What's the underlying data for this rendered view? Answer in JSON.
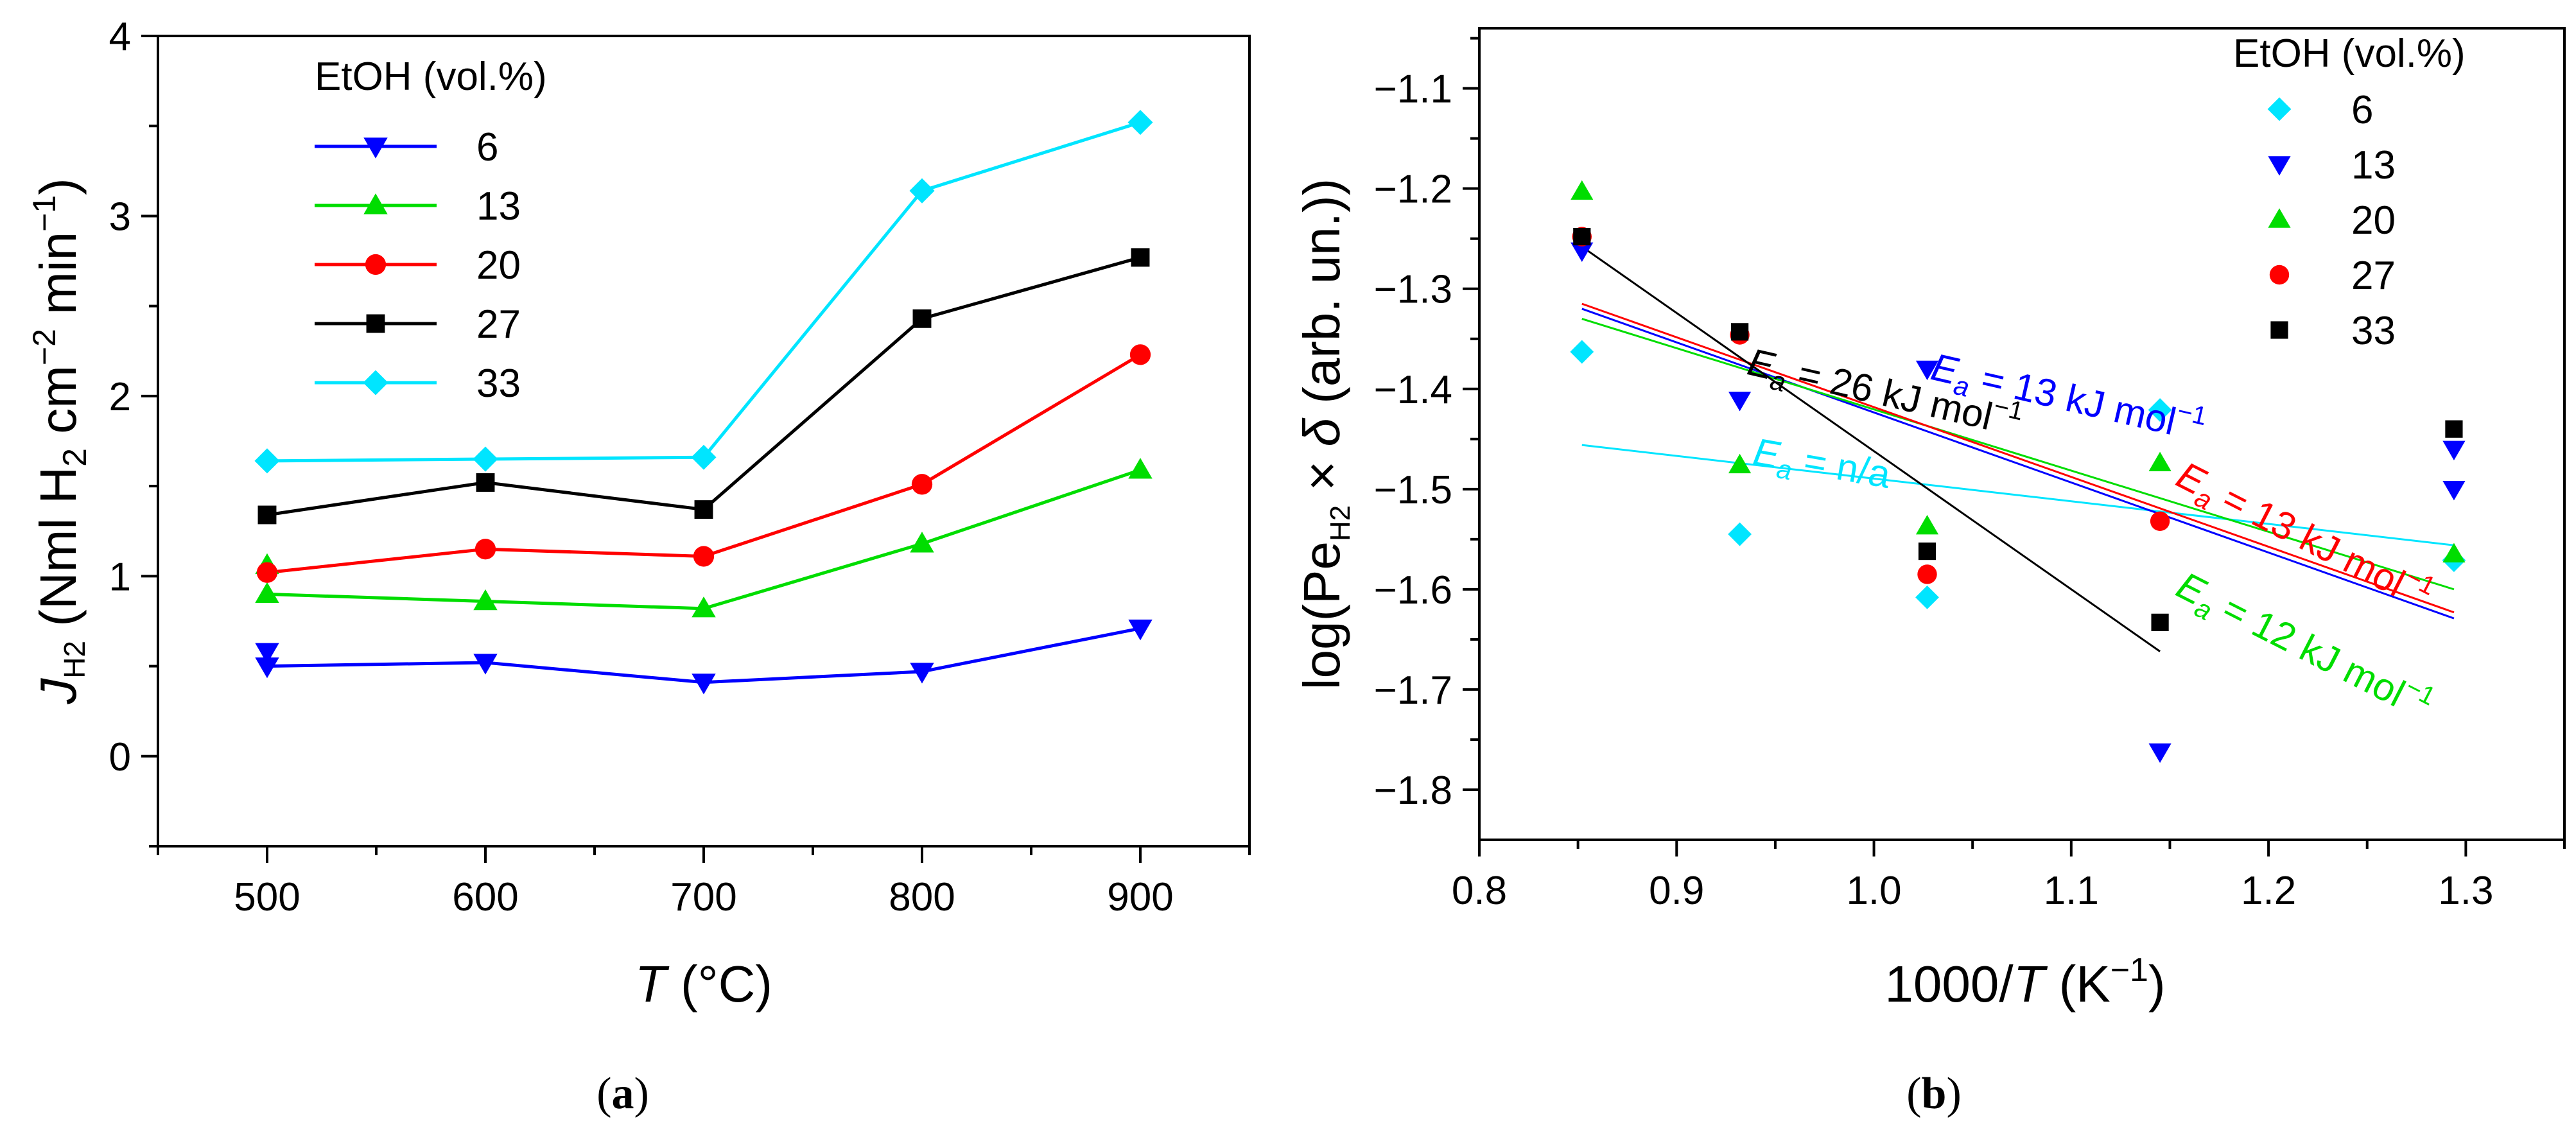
{
  "chart_data": [
    {
      "type": "line",
      "panel_label": "(a)",
      "panel_letter": "a",
      "xlabel": "T (°C)",
      "xlabel_var": "T",
      "xlabel_unit": " (°C)",
      "ylabel": "J_H2 (Nml H2 cm−2 min−1)",
      "ylabel_var": "J",
      "ylabel_sub": "H2",
      "ylabel_parts": {
        "p1": " (Nml H",
        "sub2": "2",
        "p2": " cm",
        "sup1": "−2",
        "p3": " min",
        "sup2": "−1",
        "p4": ")"
      },
      "xlim": [
        450,
        950
      ],
      "ylim": [
        -0.5,
        4
      ],
      "xticks": [
        500,
        600,
        700,
        800,
        900
      ],
      "yticks": [
        0,
        1,
        2,
        3,
        4
      ],
      "legend_title": "EtOH (vol.%)",
      "categories": [
        500,
        600,
        700,
        800,
        900
      ],
      "series": [
        {
          "name": "6",
          "color": "#0000ff",
          "marker": "triangle-down",
          "values": [
            0.5,
            0.52,
            0.41,
            0.47,
            0.71
          ],
          "extra_points": [
            [
              500,
              0.58
            ]
          ]
        },
        {
          "name": "13",
          "color": "#00dd00",
          "marker": "triangle-up",
          "values": [
            0.9,
            0.86,
            0.82,
            1.18,
            1.59
          ],
          "extra_points": [
            [
              500,
              1.06
            ]
          ]
        },
        {
          "name": "20",
          "color": "#ff0000",
          "marker": "circle",
          "values": [
            1.02,
            1.15,
            1.11,
            1.51,
            2.23
          ]
        },
        {
          "name": "27",
          "color": "#000000",
          "marker": "square",
          "values": [
            1.34,
            1.52,
            1.37,
            2.43,
            2.77
          ]
        },
        {
          "name": "33",
          "color": "#00e5ff",
          "marker": "diamond",
          "values": [
            1.64,
            1.65,
            1.66,
            3.14,
            3.52
          ]
        }
      ]
    },
    {
      "type": "scatter",
      "panel_label": "(b)",
      "panel_letter": "b",
      "xlabel": "1000/T (K−1)",
      "xlabel_parts": {
        "p1": "1000/",
        "var": "T",
        "p2": " (K",
        "sup": "−1",
        "p3": ")"
      },
      "ylabel": "log(Pe_H2 × δ (arb. un.))",
      "ylabel_parts": {
        "p1": "log(Pe",
        "sub": "H2",
        "p2": " × ",
        "delta": "δ",
        "p3": " (arb. un.))"
      },
      "xlim": [
        0.8,
        1.35
      ],
      "ylim": [
        -1.85,
        -1.04
      ],
      "xticks": [
        0.8,
        0.9,
        1.0,
        1.1,
        1.2,
        1.3
      ],
      "yticks": [
        -1.8,
        -1.7,
        -1.6,
        -1.5,
        -1.4,
        -1.3,
        -1.2,
        -1.1
      ],
      "xtick_labels": [
        "0.8",
        "0.9",
        "1.0",
        "1.1",
        "1.2",
        "1.3"
      ],
      "ytick_labels": [
        "−1.8",
        "−1.7",
        "−1.6",
        "−1.5",
        "−1.4",
        "−1.3",
        "−1.2",
        "−1.1"
      ],
      "legend_title": "EtOH (vol.%)",
      "series": [
        {
          "name": "6",
          "color": "#00e5ff",
          "marker": "diamond",
          "points": [
            [
              0.852,
              -1.363
            ],
            [
              0.932,
              -1.545
            ],
            [
              1.027,
              -1.608
            ],
            [
              1.145,
              -1.421
            ],
            [
              1.294,
              -1.571
            ]
          ]
        },
        {
          "name": "13",
          "color": "#0000ff",
          "marker": "triangle-down",
          "points": [
            [
              0.852,
              -1.262
            ],
            [
              0.932,
              -1.411
            ],
            [
              1.027,
              -1.38
            ],
            [
              1.145,
              -1.762
            ],
            [
              1.294,
              -1.46
            ],
            [
              1.294,
              -1.5
            ]
          ]
        },
        {
          "name": "20",
          "color": "#00dd00",
          "marker": "triangle-up",
          "points": [
            [
              0.852,
              -1.203
            ],
            [
              0.932,
              -1.476
            ],
            [
              1.027,
              -1.537
            ],
            [
              1.145,
              -1.474
            ],
            [
              1.294,
              -1.565
            ]
          ]
        },
        {
          "name": "27",
          "color": "#ff0000",
          "marker": "circle",
          "points": [
            [
              0.852,
              -1.248
            ],
            [
              0.932,
              -1.346
            ],
            [
              1.027,
              -1.585
            ],
            [
              1.145,
              -1.532
            ]
          ]
        },
        {
          "name": "33",
          "color": "#000000",
          "marker": "square",
          "points": [
            [
              0.852,
              -1.248
            ],
            [
              0.932,
              -1.343
            ],
            [
              1.027,
              -1.562
            ],
            [
              1.145,
              -1.633
            ],
            [
              1.294,
              -1.44
            ]
          ]
        }
      ],
      "fits": [
        {
          "color": "#00e5ff",
          "x": [
            0.852,
            1.294
          ],
          "y": [
            -1.456,
            -1.556
          ]
        },
        {
          "color": "#0000ff",
          "x": [
            0.852,
            1.294
          ],
          "y": [
            -1.32,
            -1.629
          ]
        },
        {
          "color": "#00dd00",
          "x": [
            0.852,
            1.294
          ],
          "y": [
            -1.33,
            -1.6
          ]
        },
        {
          "color": "#ff0000",
          "x": [
            0.852,
            1.294
          ],
          "y": [
            -1.315,
            -1.623
          ]
        },
        {
          "color": "#000000",
          "x": [
            0.852,
            1.145
          ],
          "y": [
            -1.258,
            -1.662
          ]
        }
      ],
      "annotations": [
        {
          "color": "#0000ff",
          "x": 1.028,
          "y": -1.39,
          "angle": 13,
          "label": "E",
          "sub": "a",
          "text": " = 13 kJ mol",
          "sup": "−1"
        },
        {
          "color": "#000000",
          "x": 0.935,
          "y": -1.385,
          "angle": 13,
          "label": "E",
          "sub": "a",
          "text": " = 26 kJ mol",
          "sup": "−1"
        },
        {
          "color": "#00e5ff",
          "x": 0.938,
          "y": -1.475,
          "angle": 10,
          "label": "E",
          "sub": "a",
          "text": " = n/a",
          "sup": ""
        },
        {
          "color": "#ff0000",
          "x": 1.152,
          "y": -1.495,
          "angle": 27,
          "label": "E",
          "sub": "a",
          "text": " = 13 kJ mol",
          "sup": "−1"
        },
        {
          "color": "#00dd00",
          "x": 1.152,
          "y": -1.605,
          "angle": 27,
          "label": "E",
          "sub": "a",
          "text": " = 12 kJ mol",
          "sup": "−1"
        }
      ]
    }
  ]
}
